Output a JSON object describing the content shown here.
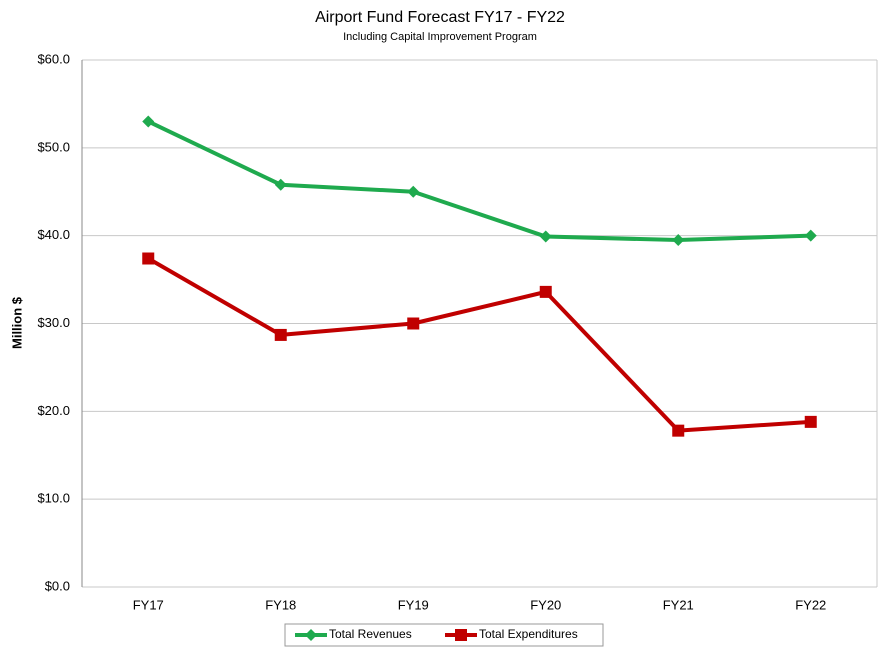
{
  "chart_data": {
    "type": "line",
    "title": "Airport Fund Forecast FY17 - FY22",
    "subtitle": "Including Capital Improvement Program",
    "y_label": "Million $",
    "categories": [
      "FY17",
      "FY18",
      "FY19",
      "FY20",
      "FY21",
      "FY22"
    ],
    "series": [
      {
        "name": "Total Revenues",
        "color": "#1faa4e",
        "marker": "diamond",
        "values": [
          53.0,
          45.8,
          45.0,
          39.9,
          39.5,
          40.0
        ]
      },
      {
        "name": "Total Expenditures",
        "color": "#c00000",
        "marker": "square",
        "values": [
          37.4,
          28.7,
          30.0,
          33.6,
          17.8,
          18.8
        ]
      }
    ],
    "ylim": [
      0,
      60
    ],
    "yticks": [
      {
        "value": 0,
        "label": "$0.0"
      },
      {
        "value": 10,
        "label": "$10.0"
      },
      {
        "value": 20,
        "label": "$20.0"
      },
      {
        "value": 30,
        "label": "$30.0"
      },
      {
        "value": 40,
        "label": "$40.0"
      },
      {
        "value": 50,
        "label": "$50.0"
      },
      {
        "value": 60,
        "label": "$60.0"
      }
    ],
    "grid": true,
    "legend": "bottom"
  }
}
